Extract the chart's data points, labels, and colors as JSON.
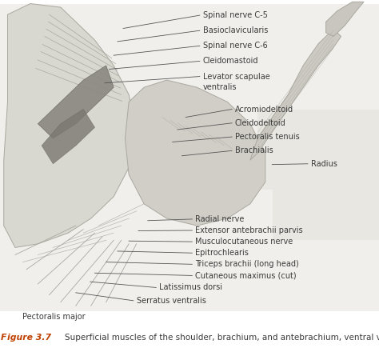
{
  "background_color": "#ffffff",
  "image_area_color": "#f0efec",
  "radius_bg_color": "#e8e7e2",
  "text_color": "#3a3a3a",
  "figure_label": "igure 3.7",
  "figure_label_f": "F",
  "figure_label_color": "#c04000",
  "figure_caption": "Superficial muscles of the shoulder, brachium, and antebrachium, ventral view",
  "caption_fontsize": 7.8,
  "label_fontsize": 7.0,
  "line_color": "#555555",
  "line_width": 0.6,
  "labels_upper_left": [
    {
      "text": "Spinal nerve C-5",
      "xt": 0.535,
      "yt": 0.958,
      "xl": 0.325,
      "yl": 0.922
    },
    {
      "text": "Basioclavicularis",
      "xt": 0.535,
      "yt": 0.916,
      "xl": 0.31,
      "yl": 0.886
    },
    {
      "text": "Spinal nerve C-6",
      "xt": 0.535,
      "yt": 0.874,
      "xl": 0.3,
      "yl": 0.848
    },
    {
      "text": "Cleidomastoid",
      "xt": 0.535,
      "yt": 0.832,
      "xl": 0.288,
      "yl": 0.81
    },
    {
      "text": "Levator scapulae",
      "xt": 0.535,
      "yt": 0.79,
      "xl": 0.276,
      "yl": 0.772
    },
    {
      "text": "ventralis",
      "xt": 0.535,
      "yt": 0.76,
      "xl": null,
      "yl": null
    }
  ],
  "labels_mid_right": [
    {
      "text": "Acromiodeltoid",
      "xt": 0.62,
      "yt": 0.7,
      "xl": 0.49,
      "yl": 0.678
    },
    {
      "text": "Cleidodeltoid",
      "xt": 0.62,
      "yt": 0.662,
      "xl": 0.468,
      "yl": 0.644
    },
    {
      "text": "Pectoralis tenuis",
      "xt": 0.62,
      "yt": 0.624,
      "xl": 0.455,
      "yl": 0.61
    },
    {
      "text": "Brachialis",
      "xt": 0.62,
      "yt": 0.586,
      "xl": 0.48,
      "yl": 0.572
    }
  ],
  "label_radius": {
    "text": "Radius",
    "xt": 0.82,
    "yt": 0.55,
    "xl": 0.718,
    "yl": 0.548
  },
  "labels_lower": [
    {
      "text": "Radial nerve",
      "xt": 0.515,
      "yt": 0.398,
      "xl": 0.39,
      "yl": 0.394
    },
    {
      "text": "Extensor antebrachii parvis",
      "xt": 0.515,
      "yt": 0.367,
      "xl": 0.365,
      "yl": 0.366
    },
    {
      "text": "Musculocutaneous nerve",
      "xt": 0.515,
      "yt": 0.336,
      "xl": 0.34,
      "yl": 0.338
    },
    {
      "text": "Epitrochlearis",
      "xt": 0.515,
      "yt": 0.305,
      "xl": 0.31,
      "yl": 0.31
    },
    {
      "text": "Triceps brachii (long head)",
      "xt": 0.515,
      "yt": 0.274,
      "xl": 0.28,
      "yl": 0.28
    },
    {
      "text": "Cutaneous maximus (cut)",
      "xt": 0.515,
      "yt": 0.243,
      "xl": 0.25,
      "yl": 0.25
    },
    {
      "text": "Latissimus dorsi",
      "xt": 0.42,
      "yt": 0.21,
      "xl": 0.238,
      "yl": 0.226
    },
    {
      "text": "Serratus ventralis",
      "xt": 0.36,
      "yt": 0.174,
      "xl": 0.2,
      "yl": 0.196
    },
    {
      "text": "Pectoralis major",
      "xt": 0.06,
      "yt": 0.13,
      "xl": null,
      "yl": null
    }
  ]
}
